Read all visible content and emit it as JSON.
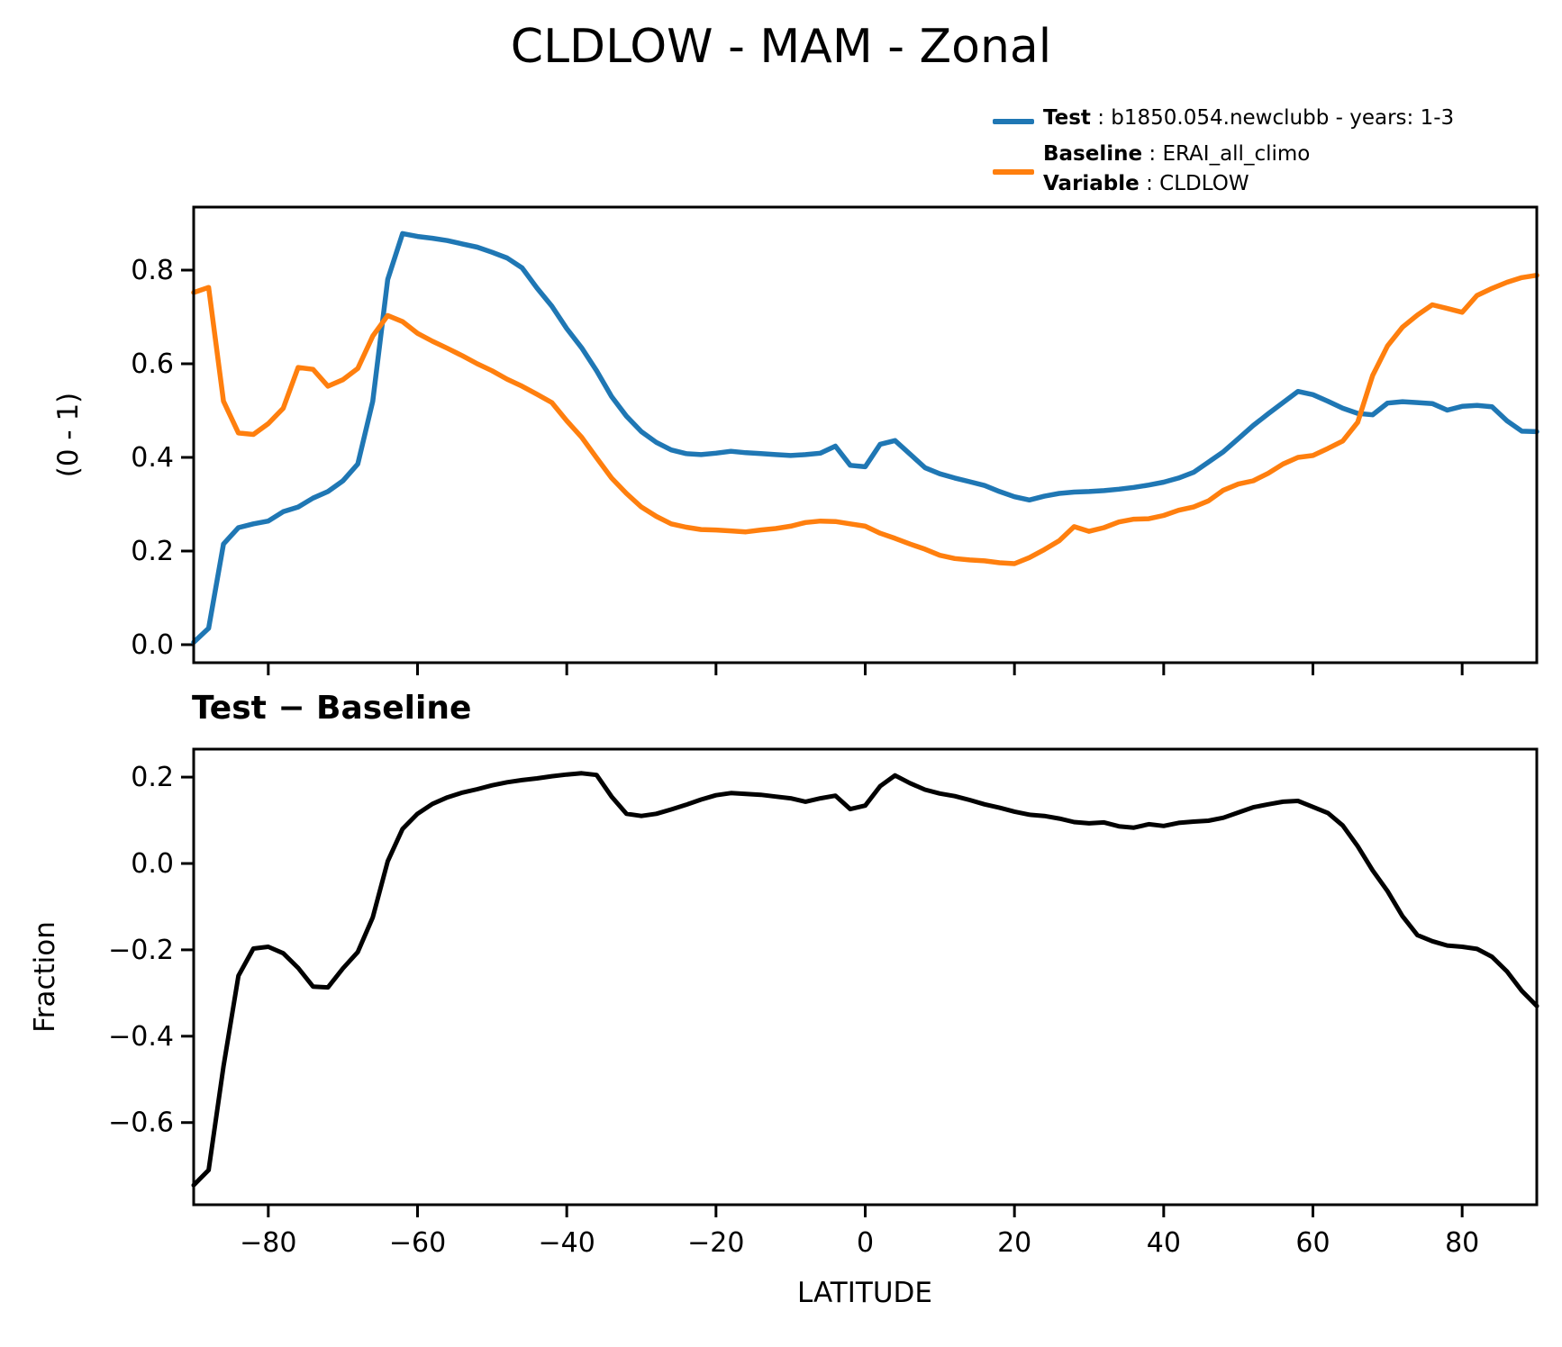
{
  "figure": {
    "title": "CLDLOW - MAM - Zonal"
  },
  "legend": {
    "entries": [
      {
        "label": "Test",
        "text": " : b1850.054.newclubb - years: 1-3",
        "color": "#1f77b4"
      },
      {
        "label": "Baseline",
        "text": " : ERAI_all_climo",
        "color": "#ff7f0e"
      },
      {
        "label": "Variable",
        "text": " : CLDLOW",
        "color": ""
      }
    ]
  },
  "colors": {
    "test": "#1f77b4",
    "baseline": "#ff7f0e",
    "difference": "#000000",
    "axis": "#000000",
    "background": "#ffffff"
  },
  "chart_data": [
    {
      "type": "line",
      "title": "",
      "xlabel": "",
      "ylabel": "(0 - 1)",
      "xlim": [
        -90,
        90
      ],
      "ylim": [
        -0.0385,
        0.9346
      ],
      "grid": false,
      "legend_position": "upper right of figure, no frame",
      "xtick_values": [
        -80,
        -60,
        -40,
        -20,
        0,
        20,
        40,
        60,
        80
      ],
      "xtick_labels": [
        "",
        "",
        "",
        "",
        "",
        "",
        "",
        "",
        ""
      ],
      "ytick_values": [
        0.0,
        0.2,
        0.4,
        0.6,
        0.8
      ],
      "ytick_labels": [
        "0.0",
        "0.2",
        "0.4",
        "0.6",
        "0.8"
      ],
      "x": [
        -90,
        -88,
        -86,
        -84,
        -82,
        -80,
        -78,
        -76,
        -74,
        -72,
        -70,
        -68,
        -66,
        -64,
        -62,
        -60,
        -58,
        -56,
        -54,
        -52,
        -50,
        -48,
        -46,
        -44,
        -42,
        -40,
        -38,
        -36,
        -34,
        -32,
        -30,
        -28,
        -26,
        -24,
        -22,
        -20,
        -18,
        -16,
        -14,
        -12,
        -10,
        -8,
        -6,
        -4,
        -2,
        0,
        2,
        4,
        6,
        8,
        10,
        12,
        14,
        16,
        18,
        20,
        22,
        24,
        26,
        28,
        30,
        32,
        34,
        36,
        38,
        40,
        42,
        44,
        46,
        48,
        50,
        52,
        54,
        56,
        58,
        60,
        62,
        64,
        66,
        68,
        70,
        72,
        74,
        76,
        78,
        80,
        82,
        84,
        86,
        88,
        90
      ],
      "series": [
        {
          "name": "Test : b1850.054.newclubb - years: 1-3",
          "color": "#1f77b4",
          "values": [
            0.005,
            0.035,
            0.215,
            0.25,
            0.258,
            0.264,
            0.284,
            0.294,
            0.313,
            0.327,
            0.35,
            0.386,
            0.52,
            0.78,
            0.878,
            0.872,
            0.868,
            0.863,
            0.856,
            0.849,
            0.838,
            0.826,
            0.805,
            0.762,
            0.723,
            0.675,
            0.634,
            0.585,
            0.53,
            0.488,
            0.455,
            0.432,
            0.416,
            0.408,
            0.406,
            0.409,
            0.413,
            0.41,
            0.408,
            0.406,
            0.404,
            0.406,
            0.409,
            0.424,
            0.383,
            0.38,
            0.428,
            0.436,
            0.407,
            0.378,
            0.365,
            0.356,
            0.348,
            0.34,
            0.327,
            0.316,
            0.309,
            0.317,
            0.323,
            0.326,
            0.327,
            0.329,
            0.332,
            0.336,
            0.341,
            0.347,
            0.356,
            0.368,
            0.39,
            0.412,
            0.44,
            0.468,
            0.493,
            0.517,
            0.541,
            0.534,
            0.52,
            0.505,
            0.494,
            0.491,
            0.516,
            0.519,
            0.517,
            0.515,
            0.501,
            0.509,
            0.511,
            0.508,
            0.478,
            0.456,
            0.455
          ]
        },
        {
          "name": "Baseline : ERAI_all_climo",
          "color": "#ff7f0e",
          "values": [
            0.752,
            0.763,
            0.52,
            0.452,
            0.449,
            0.472,
            0.505,
            0.592,
            0.588,
            0.552,
            0.566,
            0.59,
            0.659,
            0.703,
            0.69,
            0.665,
            0.648,
            0.633,
            0.617,
            0.6,
            0.585,
            0.567,
            0.552,
            0.535,
            0.517,
            0.478,
            0.443,
            0.399,
            0.356,
            0.323,
            0.294,
            0.274,
            0.258,
            0.251,
            0.246,
            0.245,
            0.243,
            0.241,
            0.245,
            0.248,
            0.253,
            0.261,
            0.264,
            0.263,
            0.258,
            0.253,
            0.238,
            0.227,
            0.215,
            0.204,
            0.191,
            0.184,
            0.181,
            0.179,
            0.175,
            0.173,
            0.186,
            0.203,
            0.222,
            0.252,
            0.242,
            0.25,
            0.262,
            0.268,
            0.269,
            0.276,
            0.287,
            0.294,
            0.307,
            0.33,
            0.343,
            0.35,
            0.366,
            0.386,
            0.4,
            0.404,
            0.419,
            0.435,
            0.475,
            0.575,
            0.638,
            0.678,
            0.704,
            0.726,
            0.718,
            0.71,
            0.746,
            0.761,
            0.774,
            0.784,
            0.789
          ]
        }
      ]
    },
    {
      "type": "line",
      "title": "Test − Baseline",
      "xlabel": "LATITUDE",
      "ylabel": "Fraction",
      "xlim": [
        -90,
        90
      ],
      "ylim": [
        -0.7903,
        0.2648
      ],
      "grid": false,
      "xtick_values": [
        -80,
        -60,
        -40,
        -20,
        0,
        20,
        40,
        60,
        80
      ],
      "xtick_labels": [
        "−80",
        "−60",
        "−40",
        "−20",
        "0",
        "20",
        "40",
        "60",
        "80"
      ],
      "ytick_values": [
        0.2,
        0.0,
        -0.2,
        -0.4,
        -0.6
      ],
      "ytick_labels": [
        "0.2",
        "0.0",
        "−0.2",
        "−0.4",
        "−0.6"
      ],
      "x": [
        -90,
        -88,
        -86,
        -84,
        -82,
        -80,
        -78,
        -76,
        -74,
        -72,
        -70,
        -68,
        -66,
        -64,
        -62,
        -60,
        -58,
        -56,
        -54,
        -52,
        -50,
        -48,
        -46,
        -44,
        -42,
        -40,
        -38,
        -36,
        -34,
        -32,
        -30,
        -28,
        -26,
        -24,
        -22,
        -20,
        -18,
        -16,
        -14,
        -12,
        -10,
        -8,
        -6,
        -4,
        -2,
        0,
        2,
        4,
        6,
        8,
        10,
        12,
        14,
        16,
        18,
        20,
        22,
        24,
        26,
        28,
        30,
        32,
        34,
        36,
        38,
        40,
        42,
        44,
        46,
        48,
        50,
        52,
        54,
        56,
        58,
        60,
        62,
        64,
        66,
        68,
        70,
        72,
        74,
        76,
        78,
        80,
        82,
        84,
        86,
        88,
        90
      ],
      "series": [
        {
          "name": "Test − Baseline",
          "color": "#000000",
          "values": [
            -0.745,
            -0.71,
            -0.47,
            -0.26,
            -0.197,
            -0.193,
            -0.208,
            -0.242,
            -0.285,
            -0.287,
            -0.243,
            -0.205,
            -0.125,
            0.005,
            0.08,
            0.115,
            0.138,
            0.153,
            0.164,
            0.172,
            0.181,
            0.188,
            0.193,
            0.197,
            0.202,
            0.206,
            0.209,
            0.205,
            0.155,
            0.115,
            0.11,
            0.115,
            0.125,
            0.136,
            0.148,
            0.158,
            0.163,
            0.161,
            0.159,
            0.155,
            0.151,
            0.143,
            0.151,
            0.157,
            0.126,
            0.134,
            0.179,
            0.204,
            0.186,
            0.171,
            0.162,
            0.156,
            0.147,
            0.137,
            0.129,
            0.12,
            0.113,
            0.11,
            0.104,
            0.096,
            0.093,
            0.095,
            0.086,
            0.083,
            0.091,
            0.087,
            0.094,
            0.097,
            0.099,
            0.106,
            0.118,
            0.13,
            0.137,
            0.143,
            0.145,
            0.131,
            0.117,
            0.088,
            0.04,
            -0.016,
            -0.064,
            -0.122,
            -0.166,
            -0.18,
            -0.19,
            -0.193,
            -0.198,
            -0.216,
            -0.25,
            -0.295,
            -0.33
          ]
        }
      ]
    }
  ]
}
